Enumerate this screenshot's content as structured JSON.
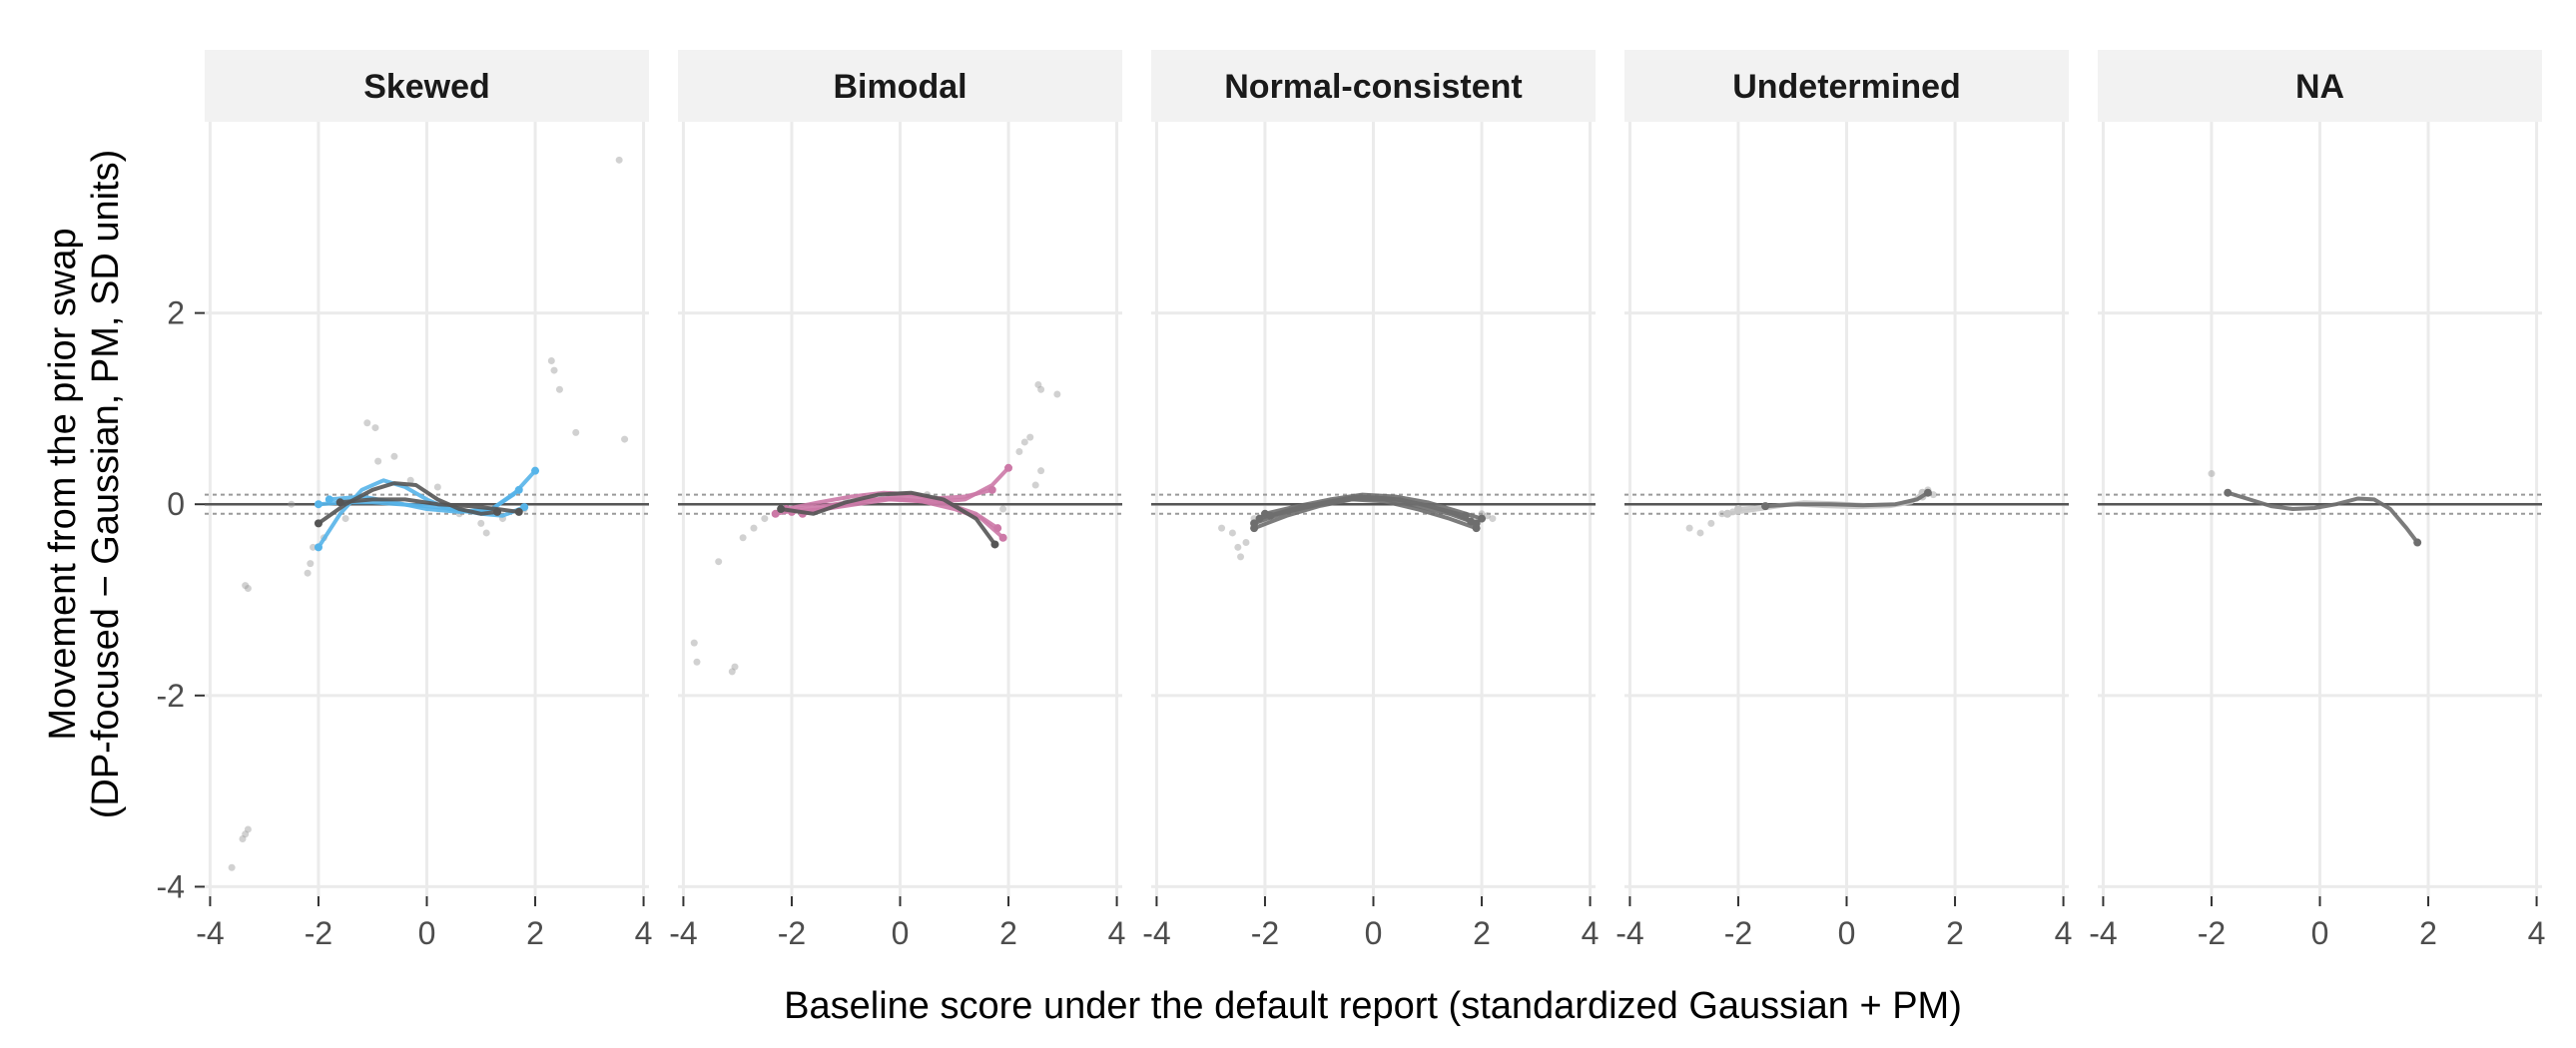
{
  "chart_data": {
    "type": "scatter",
    "xlabel": "Baseline score under the default report (standardized Gaussian + PM)",
    "ylabel_lines": [
      "Movement from the prior swap",
      "(DP-focused − Gaussian, PM, SD units)"
    ],
    "xlim": [
      -4.1,
      4.1
    ],
    "ylim": [
      -4.1,
      4.0
    ],
    "x_ticks": [
      -4,
      -2,
      0,
      2,
      4
    ],
    "x_tick_labels": [
      "-4",
      "-2",
      "0",
      "2",
      "4"
    ],
    "y_ticks": [
      -4,
      -2,
      0,
      2
    ],
    "y_tick_labels": [
      "-4",
      "-2",
      "0",
      "2"
    ],
    "reference_lines": {
      "solid": 0,
      "dotted": [
        0.1,
        -0.1
      ]
    },
    "grid": true,
    "legend": "none",
    "colors": {
      "blue": "#56b4e9",
      "pink": "#cc79a7",
      "dark": "#555555",
      "mid": "#6e6e6e",
      "light": "#c8c8c8",
      "points": "#9a9a9a"
    },
    "panels": [
      {
        "title": "Skewed",
        "points": [
          [
            -3.6,
            -3.8
          ],
          [
            -3.35,
            -3.45
          ],
          [
            -3.3,
            -3.4
          ],
          [
            -3.4,
            -3.5
          ],
          [
            -3.3,
            -0.88
          ],
          [
            -3.35,
            -0.85
          ],
          [
            -2.2,
            -0.72
          ],
          [
            -2.15,
            -0.62
          ],
          [
            -2.1,
            -0.45
          ],
          [
            -1.9,
            -0.35
          ],
          [
            -2.0,
            -0.2
          ],
          [
            -1.5,
            -0.15
          ],
          [
            -1.1,
            0.85
          ],
          [
            -0.95,
            0.8
          ],
          [
            -0.9,
            0.45
          ],
          [
            -0.6,
            0.5
          ],
          [
            -0.3,
            0.25
          ],
          [
            0.2,
            0.18
          ],
          [
            0.6,
            -0.1
          ],
          [
            1.0,
            -0.2
          ],
          [
            1.1,
            -0.3
          ],
          [
            1.4,
            -0.15
          ],
          [
            1.8,
            -0.05
          ],
          [
            2.0,
            0.35
          ],
          [
            2.3,
            1.5
          ],
          [
            2.35,
            1.4
          ],
          [
            2.45,
            1.2
          ],
          [
            2.75,
            0.75
          ],
          [
            3.55,
            3.6
          ],
          [
            3.65,
            0.68
          ],
          [
            -2.5,
            0.0
          ]
        ],
        "lines": [
          {
            "color": "blue",
            "points": [
              [
                -2.0,
                -0.45
              ],
              [
                -1.6,
                -0.1
              ],
              [
                -1.2,
                0.15
              ],
              [
                -0.8,
                0.25
              ],
              [
                -0.4,
                0.18
              ],
              [
                0.0,
                0.05
              ],
              [
                0.4,
                -0.05
              ],
              [
                0.8,
                -0.08
              ],
              [
                1.2,
                -0.05
              ],
              [
                1.6,
                0.1
              ],
              [
                2.0,
                0.35
              ]
            ]
          },
          {
            "color": "blue",
            "points": [
              [
                -2.0,
                0.0
              ],
              [
                -1.5,
                0.02
              ],
              [
                -1.0,
                0.02
              ],
              [
                -0.5,
                0.0
              ],
              [
                0.0,
                -0.02
              ],
              [
                0.5,
                -0.05
              ],
              [
                1.0,
                -0.1
              ],
              [
                1.4,
                -0.12
              ],
              [
                1.8,
                -0.03
              ]
            ]
          },
          {
            "color": "blue",
            "points": [
              [
                -1.8,
                0.05
              ],
              [
                -1.2,
                0.08
              ],
              [
                -0.6,
                0.02
              ],
              [
                0.0,
                -0.05
              ],
              [
                0.6,
                -0.08
              ],
              [
                1.2,
                -0.05
              ],
              [
                1.7,
                0.15
              ]
            ]
          },
          {
            "color": "dark",
            "points": [
              [
                -2.0,
                -0.2
              ],
              [
                -1.5,
                0.0
              ],
              [
                -1.0,
                0.15
              ],
              [
                -0.6,
                0.22
              ],
              [
                -0.2,
                0.2
              ],
              [
                0.2,
                0.05
              ],
              [
                0.6,
                -0.05
              ],
              [
                1.0,
                -0.1
              ],
              [
                1.3,
                -0.08
              ]
            ]
          },
          {
            "color": "dark",
            "points": [
              [
                -1.6,
                0.02
              ],
              [
                -1.0,
                0.05
              ],
              [
                -0.4,
                0.05
              ],
              [
                0.2,
                0.0
              ],
              [
                0.8,
                -0.02
              ],
              [
                1.3,
                -0.05
              ],
              [
                1.7,
                -0.08
              ]
            ]
          }
        ]
      },
      {
        "title": "Bimodal",
        "points": [
          [
            -3.8,
            -1.45
          ],
          [
            -3.75,
            -1.65
          ],
          [
            -3.1,
            -1.75
          ],
          [
            -3.05,
            -1.7
          ],
          [
            -3.35,
            -0.6
          ],
          [
            -2.9,
            -0.35
          ],
          [
            -2.7,
            -0.25
          ],
          [
            -2.5,
            -0.15
          ],
          [
            -2.3,
            -0.1
          ],
          [
            -1.0,
            0.05
          ],
          [
            0.5,
            0.1
          ],
          [
            1.9,
            -0.05
          ],
          [
            2.2,
            0.55
          ],
          [
            2.3,
            0.65
          ],
          [
            2.4,
            0.7
          ],
          [
            2.55,
            1.25
          ],
          [
            2.6,
            1.2
          ],
          [
            2.9,
            1.15
          ],
          [
            2.6,
            0.35
          ],
          [
            2.5,
            0.2
          ]
        ],
        "lines": [
          {
            "color": "pink",
            "points": [
              [
                -2.3,
                -0.1
              ],
              [
                -1.8,
                -0.05
              ],
              [
                -1.2,
                0.0
              ],
              [
                -0.6,
                0.05
              ],
              [
                0.0,
                0.05
              ],
              [
                0.6,
                0.02
              ],
              [
                1.2,
                0.05
              ],
              [
                1.7,
                0.2
              ],
              [
                2.0,
                0.38
              ]
            ]
          },
          {
            "color": "pink",
            "points": [
              [
                -2.1,
                -0.05
              ],
              [
                -1.5,
                0.02
              ],
              [
                -0.9,
                0.08
              ],
              [
                -0.3,
                0.12
              ],
              [
                0.3,
                0.1
              ],
              [
                0.9,
                0.0
              ],
              [
                1.4,
                -0.1
              ],
              [
                1.8,
                -0.25
              ]
            ]
          },
          {
            "color": "pink",
            "points": [
              [
                -2.0,
                -0.08
              ],
              [
                -1.4,
                -0.05
              ],
              [
                -0.8,
                0.0
              ],
              [
                -0.2,
                0.05
              ],
              [
                0.4,
                0.03
              ],
              [
                1.0,
                -0.05
              ],
              [
                1.5,
                -0.15
              ],
              [
                1.9,
                -0.35
              ]
            ]
          },
          {
            "color": "pink",
            "points": [
              [
                -1.8,
                -0.1
              ],
              [
                -1.2,
                -0.02
              ],
              [
                -0.6,
                0.04
              ],
              [
                0.0,
                0.08
              ],
              [
                0.6,
                0.06
              ],
              [
                1.2,
                0.08
              ],
              [
                1.7,
                0.15
              ]
            ]
          },
          {
            "color": "dark",
            "points": [
              [
                -2.2,
                -0.05
              ],
              [
                -1.6,
                -0.1
              ],
              [
                -1.0,
                0.02
              ],
              [
                -0.4,
                0.1
              ],
              [
                0.2,
                0.12
              ],
              [
                0.8,
                0.05
              ],
              [
                1.4,
                -0.15
              ],
              [
                1.75,
                -0.42
              ]
            ]
          }
        ]
      },
      {
        "title": "Normal-consistent",
        "points": [
          [
            -2.6,
            -0.3
          ],
          [
            -2.5,
            -0.45
          ],
          [
            -2.45,
            -0.55
          ],
          [
            -2.35,
            -0.4
          ],
          [
            -2.8,
            -0.25
          ],
          [
            -2.2,
            -0.15
          ],
          [
            2.0,
            -0.1
          ],
          [
            2.1,
            -0.12
          ],
          [
            2.2,
            -0.15
          ]
        ],
        "lines": [
          {
            "color": "mid",
            "points": [
              [
                -2.2,
                -0.25
              ],
              [
                -1.6,
                -0.12
              ],
              [
                -1.0,
                -0.02
              ],
              [
                -0.4,
                0.05
              ],
              [
                0.2,
                0.03
              ],
              [
                0.8,
                -0.05
              ],
              [
                1.4,
                -0.15
              ],
              [
                1.9,
                -0.25
              ]
            ]
          },
          {
            "color": "mid",
            "points": [
              [
                -2.1,
                -0.15
              ],
              [
                -1.5,
                -0.05
              ],
              [
                -0.9,
                0.02
              ],
              [
                -0.3,
                0.08
              ],
              [
                0.3,
                0.06
              ],
              [
                0.9,
                0.0
              ],
              [
                1.5,
                -0.1
              ],
              [
                1.9,
                -0.2
              ]
            ]
          },
          {
            "color": "mid",
            "points": [
              [
                -2.0,
                -0.1
              ],
              [
                -1.4,
                -0.02
              ],
              [
                -0.8,
                0.05
              ],
              [
                -0.2,
                0.1
              ],
              [
                0.4,
                0.08
              ],
              [
                1.0,
                0.02
              ],
              [
                1.6,
                -0.08
              ],
              [
                2.0,
                -0.15
              ]
            ]
          },
          {
            "color": "mid",
            "points": [
              [
                -2.2,
                -0.2
              ],
              [
                -1.6,
                -0.08
              ],
              [
                -1.0,
                0.0
              ],
              [
                -0.4,
                0.06
              ],
              [
                0.2,
                0.05
              ],
              [
                0.8,
                -0.02
              ],
              [
                1.4,
                -0.1
              ],
              [
                1.8,
                -0.18
              ]
            ]
          },
          {
            "color": "mid",
            "points": [
              [
                -1.9,
                -0.12
              ],
              [
                -1.3,
                -0.04
              ],
              [
                -0.7,
                0.03
              ],
              [
                -0.1,
                0.07
              ],
              [
                0.5,
                0.05
              ],
              [
                1.1,
                -0.03
              ],
              [
                1.7,
                -0.12
              ]
            ]
          }
        ]
      },
      {
        "title": "Undetermined",
        "points": [
          [
            -2.9,
            -0.25
          ],
          [
            -2.7,
            -0.3
          ],
          [
            -2.5,
            -0.2
          ],
          [
            -2.3,
            -0.1
          ],
          [
            -2.1,
            -0.08
          ],
          [
            1.5,
            0.15
          ],
          [
            1.6,
            0.1
          ]
        ],
        "lines": [
          {
            "color": "light",
            "points": [
              [
                -2.2,
                -0.1
              ],
              [
                -1.6,
                -0.05
              ],
              [
                -1.0,
                0.0
              ],
              [
                -0.4,
                -0.02
              ],
              [
                0.2,
                -0.03
              ],
              [
                0.8,
                -0.02
              ],
              [
                1.2,
                0.02
              ],
              [
                1.4,
                0.12
              ]
            ]
          },
          {
            "color": "light",
            "points": [
              [
                -2.0,
                -0.05
              ],
              [
                -1.4,
                -0.02
              ],
              [
                -0.8,
                0.02
              ],
              [
                -0.2,
                0.01
              ],
              [
                0.4,
                -0.01
              ],
              [
                1.0,
                0.0
              ],
              [
                1.4,
                0.08
              ]
            ]
          },
          {
            "color": "mid",
            "points": [
              [
                -1.5,
                -0.02
              ],
              [
                -0.9,
                0.0
              ],
              [
                -0.3,
                0.0
              ],
              [
                0.3,
                -0.01
              ],
              [
                0.9,
                0.0
              ],
              [
                1.3,
                0.05
              ],
              [
                1.5,
                0.12
              ]
            ]
          }
        ]
      },
      {
        "title": "NA",
        "points": [
          [
            -2.0,
            0.32
          ],
          [
            -1.7,
            0.12
          ]
        ],
        "lines": [
          {
            "color": "mid",
            "points": [
              [
                -1.7,
                0.12
              ],
              [
                -1.3,
                0.05
              ],
              [
                -0.9,
                -0.02
              ],
              [
                -0.5,
                -0.05
              ],
              [
                -0.1,
                -0.04
              ],
              [
                0.3,
                0.0
              ],
              [
                0.7,
                0.06
              ],
              [
                1.0,
                0.05
              ],
              [
                1.3,
                -0.05
              ],
              [
                1.6,
                -0.25
              ],
              [
                1.8,
                -0.4
              ]
            ]
          }
        ]
      }
    ]
  }
}
